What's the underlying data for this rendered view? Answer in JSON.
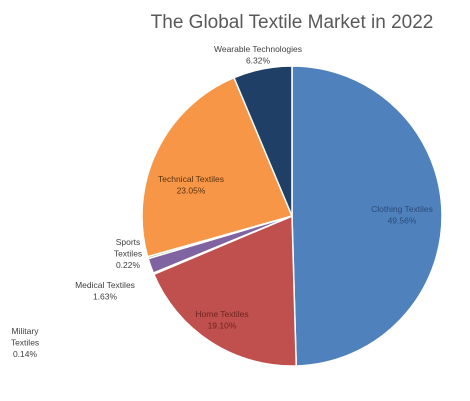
{
  "chart_data": {
    "type": "pie",
    "title": "The Global Textile Market in 2022",
    "slices": [
      {
        "label": "Clothing Textiles",
        "label_lines": [
          "Clothing Textiles"
        ],
        "value": 49.56,
        "value_text": "49.56%",
        "color": "#4f81bd",
        "text_color": "#2b4a78"
      },
      {
        "label": "Home Textiles",
        "label_lines": [
          "Home Textiles"
        ],
        "value": 19.1,
        "value_text": "19.10%",
        "color": "#c0504d",
        "text_color": "#6e2422"
      },
      {
        "label": "Military Textiles",
        "label_lines": [
          "Military",
          "Textiles"
        ],
        "value": 0.14,
        "value_text": "0.14%",
        "color": "#8aa9d6",
        "text_color": "#404040"
      },
      {
        "label": "Medical Textiles",
        "label_lines": [
          "Medical Textiles"
        ],
        "value": 1.63,
        "value_text": "1.63%",
        "color": "#8064a2",
        "text_color": "#404040"
      },
      {
        "label": "Sports Textiles",
        "label_lines": [
          "Sports",
          "Textiles"
        ],
        "value": 0.22,
        "value_text": "0.22%",
        "color": "#9bbb59",
        "text_color": "#404040"
      },
      {
        "label": "Technical Textiles",
        "label_lines": [
          "Technical Textiles"
        ],
        "value": 23.05,
        "value_text": "23.05%",
        "color": "#f79646",
        "text_color": "#5a3410"
      },
      {
        "label": "Wearable Technologies",
        "label_lines": [
          "Wearable Technologies"
        ],
        "value": 6.32,
        "value_text": "6.32%",
        "color": "#1f3f66",
        "text_color": "#404040"
      }
    ]
  }
}
